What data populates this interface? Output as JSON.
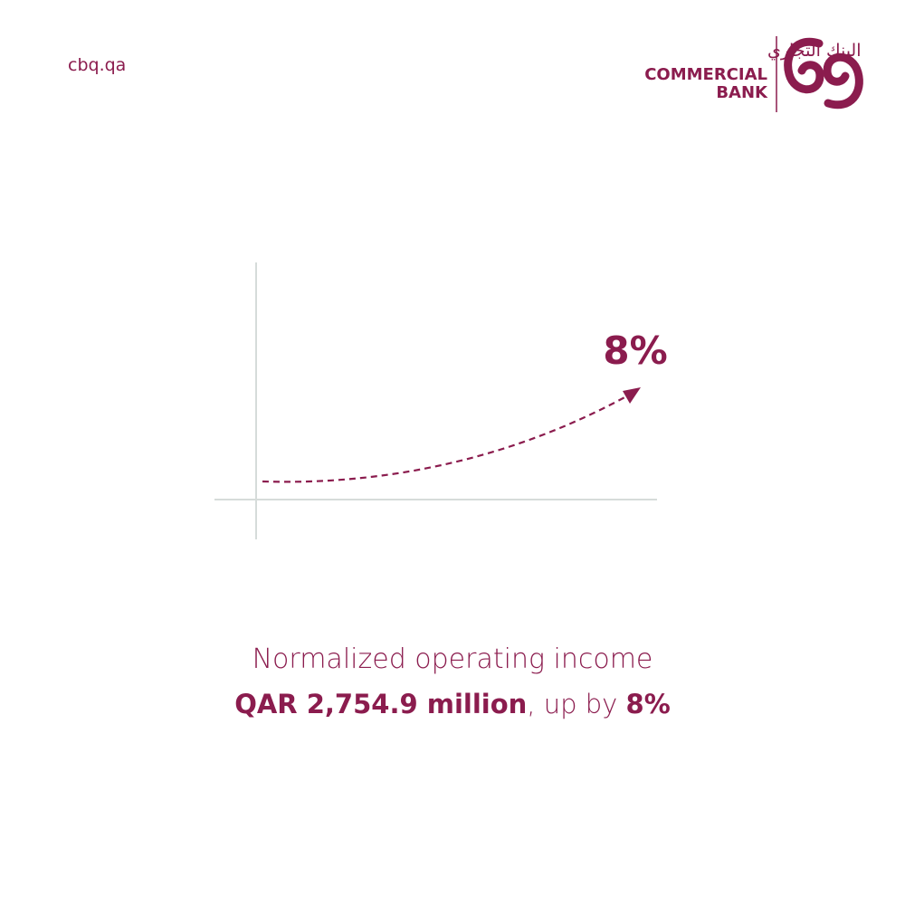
{
  "header": {
    "url": "cbq.qa",
    "logo": {
      "arabic": "البنك التجاري",
      "line1": "COMMERCIAL",
      "line2": "BANK"
    }
  },
  "graphic": {
    "label": "8%"
  },
  "caption": {
    "line1": "Normalized operating income",
    "amount": "QAR 2,754.9 million",
    "middle": ", up by ",
    "change": "8%"
  }
}
